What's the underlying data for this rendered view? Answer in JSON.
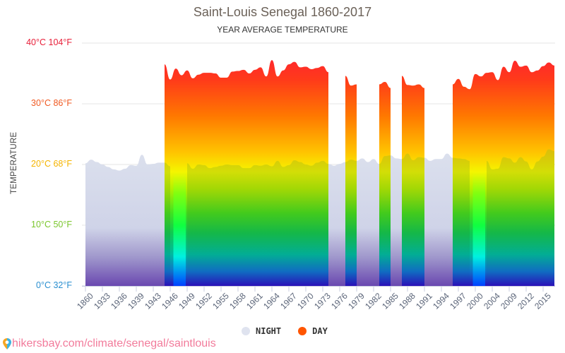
{
  "header": {
    "title": "Saint-Louis Senegal 1860-2017",
    "subtitle": "YEAR AVERAGE TEMPERATURE"
  },
  "y_axis": {
    "title": "TEMPERATURE",
    "ticks": [
      {
        "label": "40°C 104°F",
        "value": 40,
        "color": "#e8203a"
      },
      {
        "label": "30°C 86°F",
        "value": 30,
        "color": "#f05a22"
      },
      {
        "label": "20°C 68°F",
        "value": 20,
        "color": "#f5b400"
      },
      {
        "label": "10°C 50°F",
        "value": 10,
        "color": "#7ac62c"
      },
      {
        "label": "0°C 32°F",
        "value": 0,
        "color": "#2a8fd0"
      }
    ]
  },
  "x_axis": {
    "labels": [
      "1860",
      "1933",
      "1936",
      "1939",
      "1943",
      "1946",
      "1949",
      "1952",
      "1955",
      "1958",
      "1961",
      "1964",
      "1967",
      "1970",
      "1973",
      "1976",
      "1979",
      "1982",
      "1985",
      "1988",
      "1991",
      "1994",
      "1997",
      "2000",
      "2004",
      "2009",
      "2012",
      "2015"
    ]
  },
  "legend": [
    {
      "label": "NIGHT",
      "color": "#dfe3ef"
    },
    {
      "label": "DAY",
      "color": "#ff5500"
    }
  ],
  "footer": {
    "link": "hikersbay.com/climate/senegal/saintlouis"
  },
  "chart_data": {
    "type": "area",
    "title": "Saint-Louis Senegal 1860-2017",
    "subtitle": "YEAR AVERAGE TEMPERATURE",
    "xlabel": "",
    "ylabel": "TEMPERATURE",
    "ylim": [
      0,
      40
    ],
    "grid": true,
    "legend_position": "bottom",
    "x_tick_labels": [
      "1860",
      "1933",
      "1936",
      "1939",
      "1943",
      "1946",
      "1949",
      "1952",
      "1955",
      "1958",
      "1961",
      "1964",
      "1967",
      "1970",
      "1973",
      "1976",
      "1979",
      "1982",
      "1985",
      "1988",
      "1991",
      "1994",
      "1997",
      "2000",
      "2004",
      "2009",
      "2012",
      "2015"
    ],
    "point_count": 84,
    "series": [
      {
        "name": "NIGHT",
        "unit": "°C",
        "values": [
          20.2,
          20.8,
          20.4,
          20.0,
          19.6,
          19.2,
          19.0,
          19.3,
          19.9,
          19.8,
          21.6,
          20.0,
          20.1,
          20.3,
          20.3,
          19.7,
          null,
          null,
          20.2,
          19.3,
          20.0,
          19.9,
          19.4,
          19.6,
          19.8,
          20.0,
          19.9,
          19.9,
          19.4,
          19.4,
          19.9,
          19.8,
          20.0,
          19.7,
          20.6,
          19.6,
          19.9,
          20.7,
          20.4,
          20.0,
          19.8,
          20.3,
          20.6,
          20.1,
          19.8,
          20.1,
          20.4,
          20.8,
          20.6,
          21.0,
          20.4,
          20.9,
          20.1,
          21.4,
          21.5,
          21.0,
          20.9,
          21.8,
          20.7,
          21.2,
          21.1,
          20.6,
          20.9,
          20.9,
          21.8,
          21.1,
          21.0,
          20.9,
          20.6,
          null,
          null,
          20.6,
          19.2,
          19.3,
          21.2,
          21.0,
          20.3,
          21.2,
          20.5,
          19.2,
          20.5,
          21.3,
          22.5,
          22.2
        ]
      },
      {
        "name": "DAY",
        "unit": "°C",
        "values": [
          null,
          null,
          null,
          null,
          null,
          null,
          null,
          null,
          null,
          null,
          null,
          null,
          null,
          null,
          36.5,
          34.0,
          35.8,
          34.7,
          35.5,
          34.2,
          34.8,
          35.1,
          35.1,
          35.0,
          34.3,
          34.3,
          35.3,
          35.4,
          35.6,
          35.0,
          35.6,
          36.0,
          34.5,
          37.2,
          34.5,
          35.5,
          36.5,
          36.9,
          36.0,
          36.1,
          35.7,
          35.9,
          36.2,
          35.2,
          null,
          null,
          34.6,
          33.0,
          33.2,
          null,
          null,
          null,
          33.2,
          33.6,
          32.6,
          null,
          34.6,
          33.1,
          33.0,
          33.2,
          32.6,
          null,
          null,
          null,
          null,
          33.2,
          34.1,
          32.8,
          32.4,
          34.9,
          34.5,
          35.1,
          35.2,
          33.9,
          36.1,
          35.2,
          37.1,
          36.1,
          36.3,
          35.2,
          35.5,
          36.2,
          36.8,
          36.3
        ]
      }
    ],
    "segments_note": "DAY data present roughly 1946-1973, 1977-1979, 1983-1985, 1987-1991, 1996-2017; NIGHT missing around 1947-1948 and 2001-2002"
  }
}
